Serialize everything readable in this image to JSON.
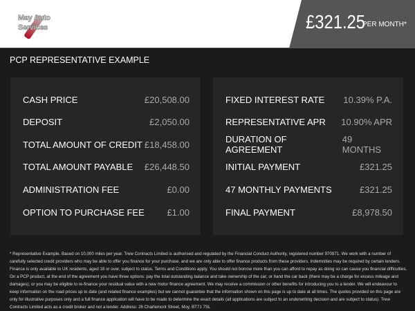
{
  "header": {
    "logo_text": [
      "May Auto",
      "Services"
    ],
    "price": "£321.25",
    "per_month": "PER MONTH*"
  },
  "title": "PCP REPRESENTATIVE EXAMPLE",
  "left": [
    {
      "label": "CASH PRICE",
      "value": "£20,508.00"
    },
    {
      "label": "DEPOSIT",
      "value": "£2,050.00"
    },
    {
      "label": "TOTAL AMOUNT OF CREDIT",
      "value": "£18,458.00"
    },
    {
      "label": "TOTAL AMOUNT PAYABLE",
      "value": "£26,448.50"
    },
    {
      "label": "ADMINISTRATION FEE",
      "value": "£0.00"
    },
    {
      "label": "OPTION TO PURCHASE FEE",
      "value": "£1.00"
    }
  ],
  "right": [
    {
      "label": "FIXED INTEREST RATE",
      "value": "10.39% P.A."
    },
    {
      "label": "REPRESENTATIVE APR",
      "value": "10.90% APR"
    },
    {
      "label": "DURATION OF AGREEMENT",
      "value": "49 MONTHS"
    },
    {
      "label": "INITIAL PAYMENT",
      "value": "£321.25"
    },
    {
      "label": "47 MONTHLY PAYMENTS",
      "value": "£321.25"
    },
    {
      "label": "FINAL PAYMENT",
      "value": "£8,978.50"
    }
  ],
  "disclaimer": "* Representative Example. Based on 10,000 miles per year. Trew Contracts Limited is authorised and regulated by the Financial Conduct Authority, registered number 970971. We work with a number of carefully selected credit providers who may be able to offer you finance for your purchase, and we are only able to offer finance products from these providers. Indemnities may be required by certain lenders. Finance is only available to UK residents, aged 18 or over, subject to status. Terms and Conditions apply. You should not borrow more than you can afford to repay as doing so can cause you financial difficulties. On a PCP product, at the end of the agreement you have three options: pay the total outstanding balance and take ownership of the car; or hand the car back (there may be a charge for excess mileage and damages); or you may be eligible to re-finance your residual value with a new motor finance agreement. We may receive a commission or other benefits for introducing you to a lender. We will endeavour to keep information on the road prices up to date (and related finance examples) but we cannot guarantee that the information shown on this page is up to date at all times. The quotes provided on this page are only for illustrative purposes only and a full finance application will have to be made to determine the exact details (all applications are subject to an underwriting decision and are subject to status). Trew Contracts Limited acts as a credit broker and not a lender. Address: 26 Charlemont Street, Moy, BT71 7SL"
}
